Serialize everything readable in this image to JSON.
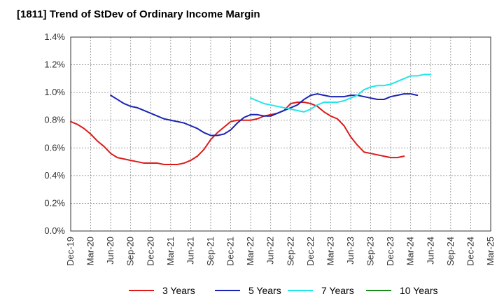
{
  "chart_data": {
    "type": "line",
    "title": "[1811]  Trend of StDev of Ordinary Income Margin",
    "xlabel": "",
    "ylabel": "",
    "ylim": [
      0,
      1.4
    ],
    "y_ticks": [
      "0.0%",
      "0.2%",
      "0.4%",
      "0.6%",
      "0.8%",
      "1.0%",
      "1.2%",
      "1.4%"
    ],
    "y_tick_values": [
      0,
      0.2,
      0.4,
      0.6,
      0.8,
      1.0,
      1.2,
      1.4
    ],
    "x_ticks": [
      "Dec-19",
      "Mar-20",
      "Jun-20",
      "Sep-20",
      "Dec-20",
      "Mar-21",
      "Jun-21",
      "Sep-21",
      "Dec-21",
      "Mar-22",
      "Jun-22",
      "Sep-22",
      "Dec-22",
      "Mar-23",
      "Jun-23",
      "Sep-23",
      "Dec-23",
      "Mar-24",
      "Jun-24",
      "Sep-24",
      "Dec-24",
      "Mar-25"
    ],
    "grid": true,
    "legend_position": "bottom",
    "series": [
      {
        "name": "3 Years",
        "color": "#dd1b1b",
        "start_index": 0,
        "values": [
          0.79,
          0.77,
          0.74,
          0.7,
          0.65,
          0.61,
          0.56,
          0.53,
          0.52,
          0.51,
          0.5,
          0.49,
          0.49,
          0.49,
          0.48,
          0.48,
          0.48,
          0.49,
          0.51,
          0.54,
          0.59,
          0.66,
          0.71,
          0.75,
          0.79,
          0.8,
          0.8,
          0.8,
          0.81,
          0.83,
          0.84,
          0.85,
          0.87,
          0.92,
          0.93,
          0.93,
          0.92,
          0.9,
          0.86,
          0.83,
          0.81,
          0.76,
          0.68,
          0.62,
          0.57,
          0.56,
          0.55,
          0.54,
          0.53,
          0.53,
          0.54
        ]
      },
      {
        "name": "5 Years",
        "color": "#1a23b5",
        "start_index": 6,
        "values": [
          0.98,
          0.95,
          0.92,
          0.9,
          0.89,
          0.87,
          0.85,
          0.83,
          0.81,
          0.8,
          0.79,
          0.78,
          0.76,
          0.74,
          0.71,
          0.69,
          0.69,
          0.7,
          0.73,
          0.78,
          0.82,
          0.84,
          0.84,
          0.83,
          0.83,
          0.85,
          0.87,
          0.89,
          0.91,
          0.95,
          0.98,
          0.99,
          0.98,
          0.97,
          0.97,
          0.97,
          0.98,
          0.98,
          0.97,
          0.96,
          0.95,
          0.95,
          0.97,
          0.98,
          0.99,
          0.99,
          0.98
        ]
      },
      {
        "name": "7 Years",
        "color": "#22e6ea",
        "start_index": 27,
        "values": [
          0.96,
          0.94,
          0.92,
          0.91,
          0.9,
          0.89,
          0.88,
          0.87,
          0.86,
          0.88,
          0.91,
          0.93,
          0.93,
          0.93,
          0.94,
          0.96,
          0.98,
          1.02,
          1.04,
          1.05,
          1.05,
          1.06,
          1.08,
          1.1,
          1.12,
          1.12,
          1.13,
          1.13
        ]
      },
      {
        "name": "10 Years",
        "color": "#1a8a1a",
        "start_index": 0,
        "values": []
      }
    ]
  }
}
